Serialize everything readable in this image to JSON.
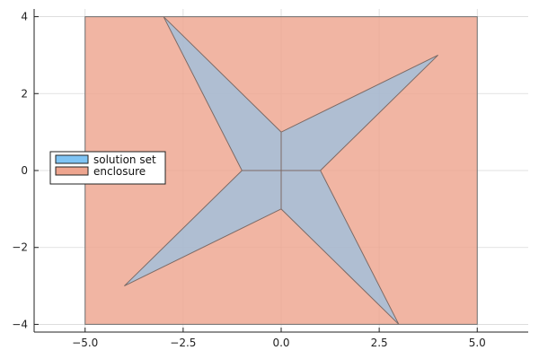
{
  "chart_data": {
    "type": "area",
    "title": "",
    "xlabel": "",
    "ylabel": "",
    "xlim": [
      -6.3,
      6.3
    ],
    "ylim": [
      -4.2,
      4.2
    ],
    "grid": true,
    "legend_position": "left",
    "xticks": [
      -5.0,
      -2.5,
      0.0,
      2.5,
      5.0
    ],
    "xtick_labels": [
      "−5.0",
      "−2.5",
      "0.0",
      "2.5",
      "5.0"
    ],
    "yticks": [
      -4,
      -2,
      0,
      2,
      4
    ],
    "ytick_labels": [
      "−4",
      "−2",
      "0",
      "2",
      "4"
    ],
    "series": [
      {
        "name": "solution set",
        "color": "#7fc4f4",
        "points": [
          [
            -3,
            4
          ],
          [
            0,
            1
          ],
          [
            4,
            3
          ],
          [
            1,
            0
          ],
          [
            3,
            -4
          ],
          [
            0,
            -1
          ],
          [
            -4,
            -3
          ],
          [
            -1,
            0
          ]
        ]
      },
      {
        "name": "enclosure",
        "color": "#eea58f",
        "points": [
          [
            -5,
            -4
          ],
          [
            5,
            -4
          ],
          [
            5,
            4
          ],
          [
            -5,
            4
          ]
        ]
      }
    ],
    "internal_segments": [
      [
        [
          -1,
          0
        ],
        [
          1,
          0
        ]
      ],
      [
        [
          0,
          -1
        ],
        [
          0,
          1
        ]
      ]
    ]
  }
}
